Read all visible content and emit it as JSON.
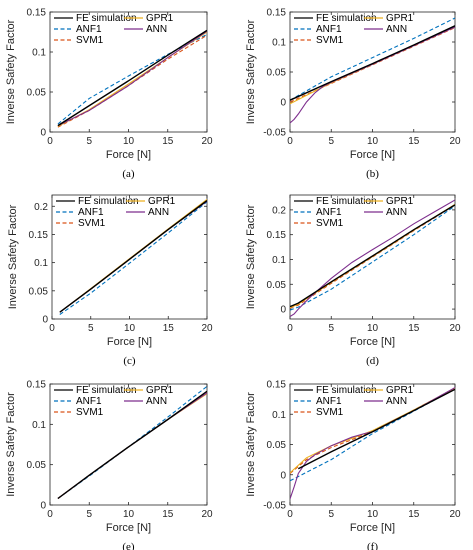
{
  "colors": {
    "fe": "#000000",
    "anf": "#0072BD",
    "svm": "#D95319",
    "gpr": "#EDB120",
    "ann": "#7E2F8E"
  },
  "chart_data": [
    {
      "type": "line",
      "panel": "(a)",
      "caption": "(a)",
      "xlabel": "Force [N]",
      "ylabel": "Inverse Safety Factor",
      "xlim": [
        0,
        20
      ],
      "ylim": [
        0,
        0.15
      ],
      "xticks": [
        "0",
        "5",
        "10",
        "15",
        "20"
      ],
      "yticks": [
        "0",
        "0.05",
        "0.1",
        "0.15"
      ],
      "legend": [
        "FE simulation",
        "ANF1",
        "SVM1",
        "GPR1",
        "ANN"
      ],
      "series": [
        {
          "name": "FE simulation",
          "style": "solid",
          "x": [
            1,
            5,
            10,
            15,
            20
          ],
          "y": [
            0.008,
            0.033,
            0.064,
            0.096,
            0.127
          ]
        },
        {
          "name": "ANF1",
          "style": "dashed",
          "x": [
            1,
            5,
            10,
            15,
            20
          ],
          "y": [
            0.01,
            0.042,
            0.07,
            0.097,
            0.122
          ]
        },
        {
          "name": "SVM1",
          "style": "dashed",
          "x": [
            1,
            5,
            10,
            15,
            20
          ],
          "y": [
            0.006,
            0.027,
            0.058,
            0.091,
            0.121
          ]
        },
        {
          "name": "GPR1",
          "style": "solid",
          "x": [
            1,
            5,
            10,
            15,
            20
          ],
          "y": [
            0.007,
            0.028,
            0.06,
            0.093,
            0.125
          ]
        },
        {
          "name": "ANN",
          "style": "solid",
          "x": [
            1,
            5,
            10,
            15,
            20
          ],
          "y": [
            0.008,
            0.027,
            0.058,
            0.093,
            0.126
          ]
        }
      ]
    },
    {
      "type": "line",
      "panel": "(b)",
      "caption": "(b)",
      "xlabel": "Force [N]",
      "ylabel": "Inverse Safety Factor",
      "xlim": [
        0,
        20
      ],
      "ylim": [
        -0.05,
        0.15
      ],
      "xticks": [
        "0",
        "5",
        "10",
        "15",
        "20"
      ],
      "yticks": [
        "-0.05",
        "0",
        "0.05",
        "0.1",
        "0.15"
      ],
      "legend": [
        "FE simulation",
        "ANF1",
        "SVM1",
        "GPR1",
        "ANN"
      ],
      "series": [
        {
          "name": "FE simulation",
          "style": "solid",
          "x": [
            0,
            5,
            10,
            15,
            20
          ],
          "y": [
            0.003,
            0.034,
            0.064,
            0.095,
            0.127
          ]
        },
        {
          "name": "ANF1",
          "style": "dashed",
          "x": [
            0,
            5,
            10,
            15,
            20
          ],
          "y": [
            0.003,
            0.042,
            0.074,
            0.106,
            0.14
          ]
        },
        {
          "name": "SVM1",
          "style": "dashed",
          "x": [
            0,
            5,
            10,
            15,
            20
          ],
          "y": [
            0.0,
            0.031,
            0.062,
            0.093,
            0.124
          ]
        },
        {
          "name": "GPR1",
          "style": "solid",
          "x": [
            0,
            5,
            10,
            15,
            20
          ],
          "y": [
            -0.003,
            0.032,
            0.063,
            0.095,
            0.126
          ]
        },
        {
          "name": "ANN",
          "style": "solid",
          "x": [
            0,
            0.5,
            1,
            2,
            3,
            4,
            5,
            7.5,
            10,
            15,
            20
          ],
          "y": [
            -0.035,
            -0.029,
            -0.02,
            0.0,
            0.015,
            0.026,
            0.033,
            0.048,
            0.063,
            0.094,
            0.125
          ]
        }
      ]
    },
    {
      "type": "line",
      "panel": "(c)",
      "caption": "(c)",
      "xlabel": "Force [N]",
      "ylabel": "Inverse Safety Factor",
      "xlim": [
        0,
        20
      ],
      "ylim": [
        0,
        0.22
      ],
      "xticks": [
        "0",
        "5",
        "10",
        "15",
        "20"
      ],
      "yticks": [
        "0",
        "0.05",
        "0.1",
        "0.15",
        "0.2"
      ],
      "legend": [
        "FE simulation",
        "ANF1",
        "SVM1",
        "GPR1",
        "ANN"
      ],
      "series": [
        {
          "name": "FE simulation",
          "style": "solid",
          "x": [
            1,
            5,
            10,
            15,
            20
          ],
          "y": [
            0.012,
            0.053,
            0.106,
            0.159,
            0.21
          ]
        },
        {
          "name": "ANF1",
          "style": "dashed",
          "x": [
            1,
            5,
            10,
            15,
            20
          ],
          "y": [
            0.008,
            0.046,
            0.099,
            0.153,
            0.208
          ]
        },
        {
          "name": "SVM1",
          "style": "dashed",
          "x": [
            1,
            5,
            10,
            15,
            20
          ],
          "y": [
            0.012,
            0.053,
            0.106,
            0.159,
            0.21
          ]
        },
        {
          "name": "GPR1",
          "style": "solid",
          "x": [
            1,
            5,
            10,
            15,
            20
          ],
          "y": [
            0.012,
            0.054,
            0.107,
            0.16,
            0.212
          ]
        },
        {
          "name": "ANN",
          "style": "solid",
          "x": [
            1,
            5,
            10,
            15,
            20
          ],
          "y": [
            0.012,
            0.053,
            0.106,
            0.159,
            0.209
          ]
        }
      ]
    },
    {
      "type": "line",
      "panel": "(d)",
      "caption": "(d)",
      "xlabel": "Force [N]",
      "ylabel": "Inverse Safety Factor",
      "xlim": [
        0,
        20
      ],
      "ylim": [
        -0.02,
        0.23
      ],
      "xticks": [
        "0",
        "5",
        "10",
        "15",
        "20"
      ],
      "yticks": [
        "0",
        "0.05",
        "0.1",
        "0.15",
        "0.2"
      ],
      "legend": [
        "FE simulation",
        "ANF1",
        "SVM1",
        "GPR1",
        "ANN"
      ],
      "series": [
        {
          "name": "FE simulation",
          "style": "solid",
          "x": [
            0,
            1,
            5,
            10,
            15,
            20
          ],
          "y": [
            0.005,
            0.012,
            0.055,
            0.107,
            0.16,
            0.21
          ]
        },
        {
          "name": "ANF1",
          "style": "dashed",
          "x": [
            0,
            1,
            5,
            10,
            15,
            20
          ],
          "y": [
            -0.002,
            0.004,
            0.04,
            0.095,
            0.15,
            0.208
          ]
        },
        {
          "name": "SVM1",
          "style": "dashed",
          "x": [
            0,
            1,
            5,
            10,
            15,
            20
          ],
          "y": [
            0.002,
            0.008,
            0.052,
            0.105,
            0.158,
            0.21
          ]
        },
        {
          "name": "GPR1",
          "style": "solid",
          "x": [
            0,
            1,
            5,
            10,
            15,
            20
          ],
          "y": [
            0.003,
            0.01,
            0.054,
            0.106,
            0.159,
            0.211
          ]
        },
        {
          "name": "ANN",
          "style": "solid",
          "x": [
            0,
            0.5,
            1,
            2.5,
            5,
            7.5,
            10,
            12.5,
            15,
            17.5,
            20
          ],
          "y": [
            -0.015,
            -0.01,
            0.0,
            0.025,
            0.062,
            0.094,
            0.12,
            0.145,
            0.172,
            0.196,
            0.22
          ]
        }
      ]
    },
    {
      "type": "line",
      "panel": "(e)",
      "caption": "(e)",
      "xlabel": "Force [N]",
      "ylabel": "Inverse Safety Factor",
      "xlim": [
        0,
        20
      ],
      "ylim": [
        0,
        0.15
      ],
      "xticks": [
        "0",
        "5",
        "10",
        "15",
        "20"
      ],
      "yticks": [
        "0",
        "0.05",
        "0.1",
        "0.15"
      ],
      "legend": [
        "FE simulation",
        "ANF1",
        "SVM1",
        "GPR1",
        "ANN"
      ],
      "series": [
        {
          "name": "FE simulation",
          "style": "solid",
          "x": [
            1,
            5,
            10,
            15,
            20
          ],
          "y": [
            0.008,
            0.037,
            0.072,
            0.106,
            0.141
          ]
        },
        {
          "name": "ANF1",
          "style": "dashed",
          "x": [
            1,
            5,
            10,
            15,
            20
          ],
          "y": [
            0.008,
            0.036,
            0.072,
            0.109,
            0.147
          ]
        },
        {
          "name": "SVM1",
          "style": "dashed",
          "x": [
            1,
            5,
            10,
            15,
            20
          ],
          "y": [
            0.008,
            0.037,
            0.072,
            0.106,
            0.14
          ]
        },
        {
          "name": "GPR1",
          "style": "solid",
          "x": [
            1,
            5,
            10,
            15,
            20
          ],
          "y": [
            0.008,
            0.037,
            0.072,
            0.106,
            0.138
          ]
        },
        {
          "name": "ANN",
          "style": "solid",
          "x": [
            1,
            5,
            10,
            15,
            20
          ],
          "y": [
            0.008,
            0.037,
            0.072,
            0.106,
            0.139
          ]
        }
      ]
    },
    {
      "type": "line",
      "panel": "(f)",
      "caption": "(f)",
      "xlabel": "Force [N]",
      "ylabel": "Inverse Safety Factor",
      "xlim": [
        0,
        20
      ],
      "ylim": [
        -0.05,
        0.15
      ],
      "xticks": [
        "0",
        "5",
        "10",
        "15",
        "20"
      ],
      "yticks": [
        "-0.05",
        "0",
        "0.05",
        "0.1",
        "0.15"
      ],
      "legend": [
        "FE simulation",
        "ANF1",
        "SVM1",
        "GPR1",
        "ANN"
      ],
      "series": [
        {
          "name": "FE simulation",
          "style": "solid",
          "x": [
            1,
            5,
            10,
            15,
            20
          ],
          "y": [
            0.01,
            0.038,
            0.071,
            0.106,
            0.141
          ]
        },
        {
          "name": "ANF1",
          "style": "dashed",
          "x": [
            0,
            5,
            10,
            15,
            20
          ],
          "y": [
            -0.01,
            0.025,
            0.068,
            0.105,
            0.142
          ]
        },
        {
          "name": "SVM1",
          "style": "dashed",
          "x": [
            0,
            2,
            5,
            7.5,
            10,
            15,
            20
          ],
          "y": [
            0.002,
            0.025,
            0.045,
            0.058,
            0.072,
            0.107,
            0.143
          ]
        },
        {
          "name": "GPR1",
          "style": "solid",
          "x": [
            0,
            2,
            5,
            7.5,
            10,
            15,
            20
          ],
          "y": [
            0.003,
            0.028,
            0.048,
            0.06,
            0.073,
            0.107,
            0.143
          ]
        },
        {
          "name": "ANN",
          "style": "solid",
          "x": [
            0,
            0.5,
            1,
            2,
            3,
            5,
            7.5,
            9,
            10,
            12.5,
            15,
            20
          ],
          "y": [
            -0.04,
            -0.02,
            0.002,
            0.022,
            0.033,
            0.048,
            0.062,
            0.068,
            0.071,
            0.089,
            0.106,
            0.144
          ]
        }
      ]
    }
  ]
}
